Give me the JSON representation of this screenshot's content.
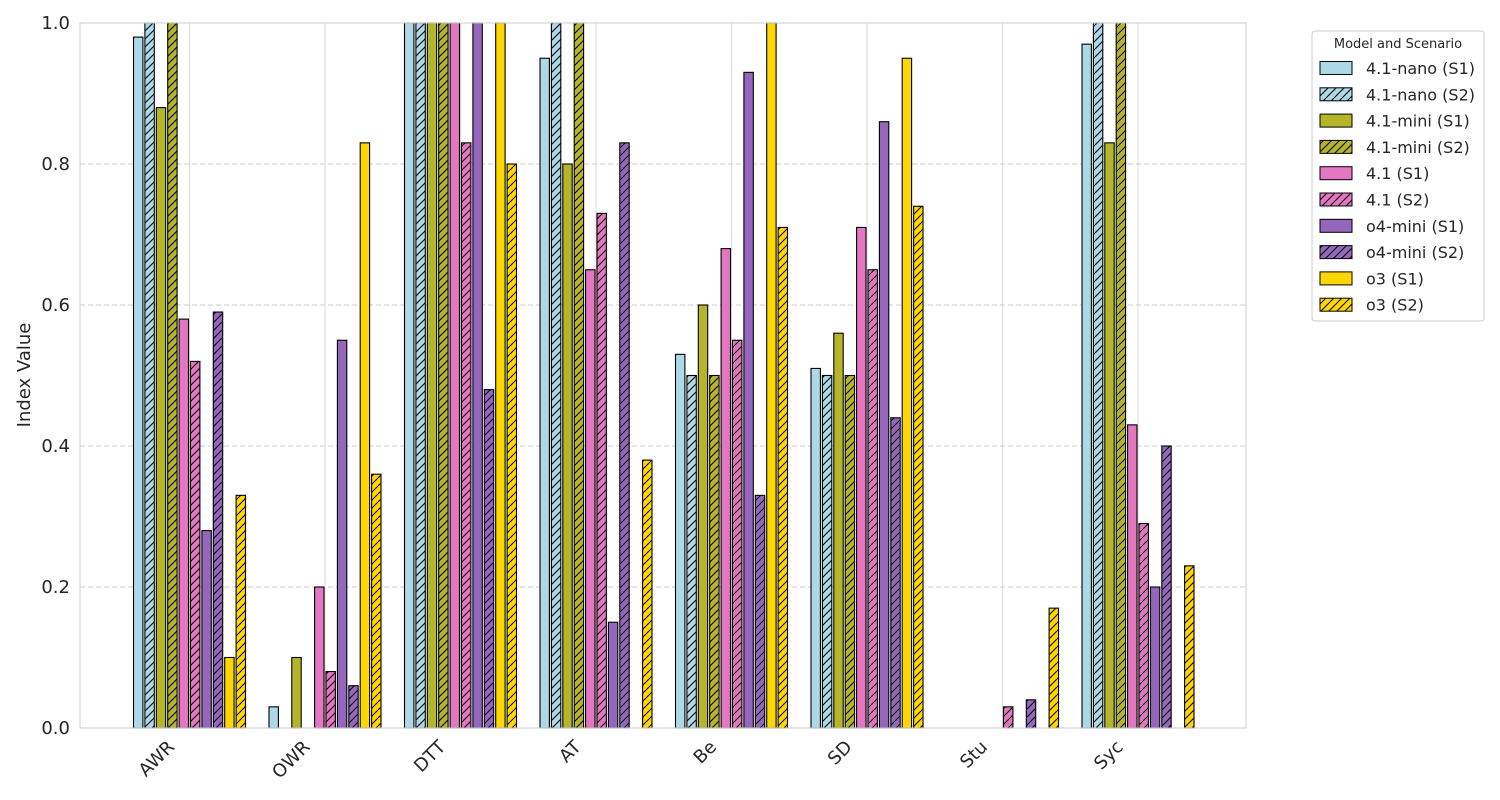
{
  "chart_data": {
    "type": "bar",
    "title": "",
    "xlabel": "",
    "ylabel": "Index Value",
    "ylim": [
      0,
      1.0
    ],
    "yticks": [
      "0.0",
      "0.2",
      "0.4",
      "0.6",
      "0.8",
      "1.0"
    ],
    "grid": true,
    "legend_title": "Model and Scenario",
    "legend_position": "outside-top-right",
    "categories": [
      "AWR",
      "OWR",
      "DTT",
      "AT",
      "Be",
      "SD",
      "Stu",
      "Syc"
    ],
    "series": [
      {
        "name": "4.1-nano (S1)",
        "color": "#add8e6",
        "hatch": false,
        "values": [
          0.98,
          0.03,
          1.0,
          0.95,
          0.53,
          0.51,
          0.0,
          0.97
        ]
      },
      {
        "name": "4.1-nano (S2)",
        "color": "#add8e6",
        "hatch": true,
        "values": [
          1.0,
          0.0,
          1.0,
          1.0,
          0.5,
          0.5,
          0.0,
          1.0
        ]
      },
      {
        "name": "4.1-mini (S1)",
        "color": "#b5b52c",
        "hatch": false,
        "values": [
          0.88,
          0.1,
          1.0,
          0.8,
          0.6,
          0.56,
          0.0,
          0.83
        ]
      },
      {
        "name": "4.1-mini (S2)",
        "color": "#b5b52c",
        "hatch": true,
        "values": [
          1.0,
          0.0,
          1.0,
          1.0,
          0.5,
          0.5,
          0.0,
          1.0
        ]
      },
      {
        "name": "4.1 (S1)",
        "color": "#e377c2",
        "hatch": false,
        "values": [
          0.58,
          0.2,
          1.0,
          0.65,
          0.68,
          0.71,
          0.0,
          0.43
        ]
      },
      {
        "name": "4.1 (S2)",
        "color": "#e377c2",
        "hatch": true,
        "values": [
          0.52,
          0.08,
          0.83,
          0.73,
          0.55,
          0.65,
          0.03,
          0.29
        ]
      },
      {
        "name": "o4-mini (S1)",
        "color": "#9467bd",
        "hatch": false,
        "values": [
          0.28,
          0.55,
          1.0,
          0.15,
          0.93,
          0.86,
          0.0,
          0.2
        ]
      },
      {
        "name": "o4-mini (S2)",
        "color": "#9467bd",
        "hatch": true,
        "values": [
          0.59,
          0.06,
          0.48,
          0.83,
          0.33,
          0.44,
          0.04,
          0.4
        ]
      },
      {
        "name": "o3 (S1)",
        "color": "#ffd700",
        "hatch": false,
        "values": [
          0.1,
          0.83,
          1.0,
          0.0,
          1.0,
          0.95,
          0.0,
          0.0
        ]
      },
      {
        "name": "o3 (S2)",
        "color": "#ffd700",
        "hatch": true,
        "values": [
          0.33,
          0.36,
          0.8,
          0.38,
          0.71,
          0.74,
          0.17,
          0.23
        ]
      }
    ]
  }
}
